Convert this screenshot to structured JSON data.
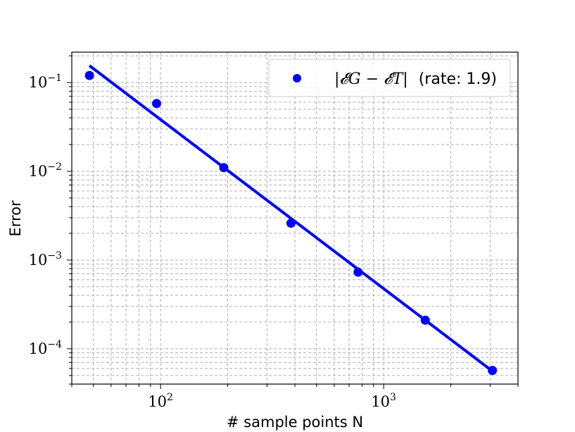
{
  "chart_data": {
    "type": "scatter",
    "title": "",
    "xlabel": "# sample points N",
    "ylabel": "Error",
    "xscale": "log",
    "yscale": "log",
    "xlim": [
      40,
      4000
    ],
    "ylim": [
      4e-05,
      0.22
    ],
    "grid": "both-major-minor-dashed",
    "legend_position": "top-right",
    "x_ticks": [
      {
        "value": 100,
        "base": "10",
        "exp": "2"
      },
      {
        "value": 1000,
        "base": "10",
        "exp": "3"
      }
    ],
    "y_ticks": [
      {
        "value": 0.1,
        "base": "10",
        "exp": "−1"
      },
      {
        "value": 0.01,
        "base": "10",
        "exp": "−2"
      },
      {
        "value": 0.001,
        "base": "10",
        "exp": "−3"
      },
      {
        "value": 0.0001,
        "base": "10",
        "exp": "−4"
      }
    ],
    "series": [
      {
        "name": "|𝓔G − 𝓔T| (rate: 1.9)",
        "color": "#0000ff",
        "kind": "scatter",
        "x": [
          48,
          96,
          192,
          384,
          768,
          1536,
          3072
        ],
        "y": [
          0.12,
          0.058,
          0.011,
          0.0026,
          0.00073,
          0.00021,
          5.7e-05
        ]
      }
    ],
    "fit_line": {
      "color": "#0000ff",
      "x": [
        48,
        3072
      ],
      "y": [
        0.155,
        5.6e-05
      ]
    },
    "legend": {
      "entry_main": "|𝓔G − 𝓔T|",
      "entry_rate": "(rate: 1.9)"
    }
  }
}
